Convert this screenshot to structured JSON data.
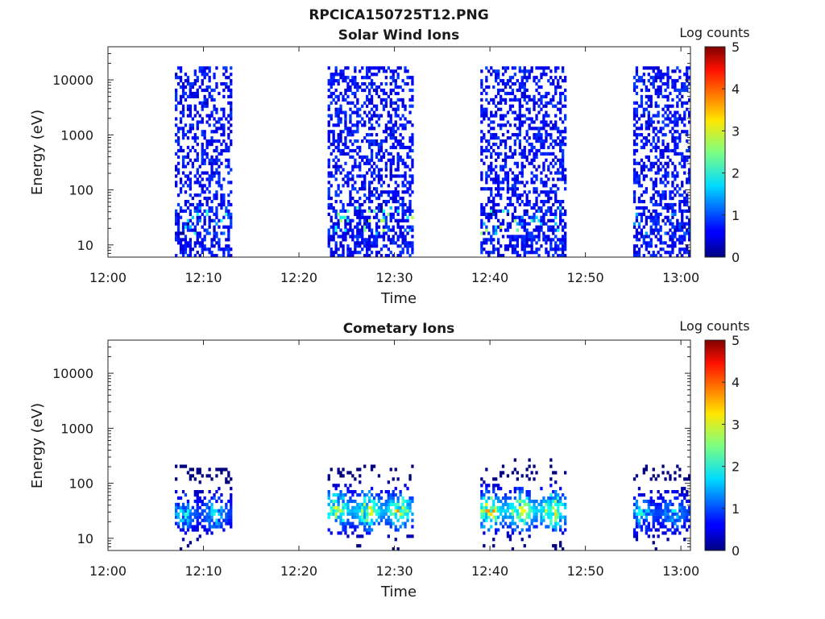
{
  "figure_title": "RPCICA150725T12.PNG",
  "chart_data": [
    {
      "type": "heatmap",
      "title": "Solar Wind Ions",
      "xlabel": "Time",
      "ylabel": "Energy (eV)",
      "yscale": "log",
      "xlim": [
        "12:00",
        "13:01"
      ],
      "ylim": [
        6,
        40000
      ],
      "xticks": [
        "12:00",
        "12:10",
        "12:20",
        "12:30",
        "12:40",
        "12:50",
        "13:00"
      ],
      "yticks": [
        "10",
        "100",
        "1000",
        "10000"
      ],
      "colorbar": {
        "label": "Log counts",
        "range": [
          0,
          5
        ],
        "ticks": [
          "0",
          "1",
          "2",
          "3",
          "4",
          "5"
        ],
        "colormap": "jet"
      },
      "grid": false,
      "data_blocks": [
        {
          "start": "12:07",
          "end": "12:13",
          "energy_max": 15000,
          "peak_energy": 27,
          "peak_log_counts": 2.2
        },
        {
          "start": "12:23",
          "end": "12:32",
          "energy_max": 15000,
          "peak_energy": 27,
          "peak_log_counts": 2.9
        },
        {
          "start": "12:39",
          "end": "12:48",
          "energy_max": 15000,
          "peak_energy": 27,
          "peak_log_counts": 2.9
        },
        {
          "start": "12:55",
          "end": "13:01",
          "energy_max": 15000,
          "peak_energy": 27,
          "peak_log_counts": 1.6
        }
      ]
    },
    {
      "type": "heatmap",
      "title": "Cometary Ions",
      "xlabel": "Time",
      "ylabel": "Energy (eV)",
      "yscale": "log",
      "xlim": [
        "12:00",
        "13:01"
      ],
      "ylim": [
        6,
        40000
      ],
      "xticks": [
        "12:00",
        "12:10",
        "12:20",
        "12:30",
        "12:40",
        "12:50",
        "13:00"
      ],
      "yticks": [
        "10",
        "100",
        "1000",
        "10000"
      ],
      "colorbar": {
        "label": "Log counts",
        "range": [
          0,
          5
        ],
        "ticks": [
          "0",
          "1",
          "2",
          "3",
          "4",
          "5"
        ],
        "colormap": "jet"
      },
      "grid": false,
      "data_blocks": [
        {
          "start": "12:07",
          "end": "12:13",
          "energy_max": 200,
          "peak_energy": 27,
          "peak_log_counts": 2.4
        },
        {
          "start": "12:23",
          "end": "12:32",
          "energy_max": 200,
          "peak_energy": 30,
          "peak_log_counts": 3.8
        },
        {
          "start": "12:39",
          "end": "12:48",
          "energy_max": 250,
          "peak_energy": 30,
          "peak_log_counts": 4.2
        },
        {
          "start": "12:55",
          "end": "13:01",
          "energy_max": 200,
          "peak_energy": 27,
          "peak_log_counts": 2.4
        }
      ]
    }
  ]
}
